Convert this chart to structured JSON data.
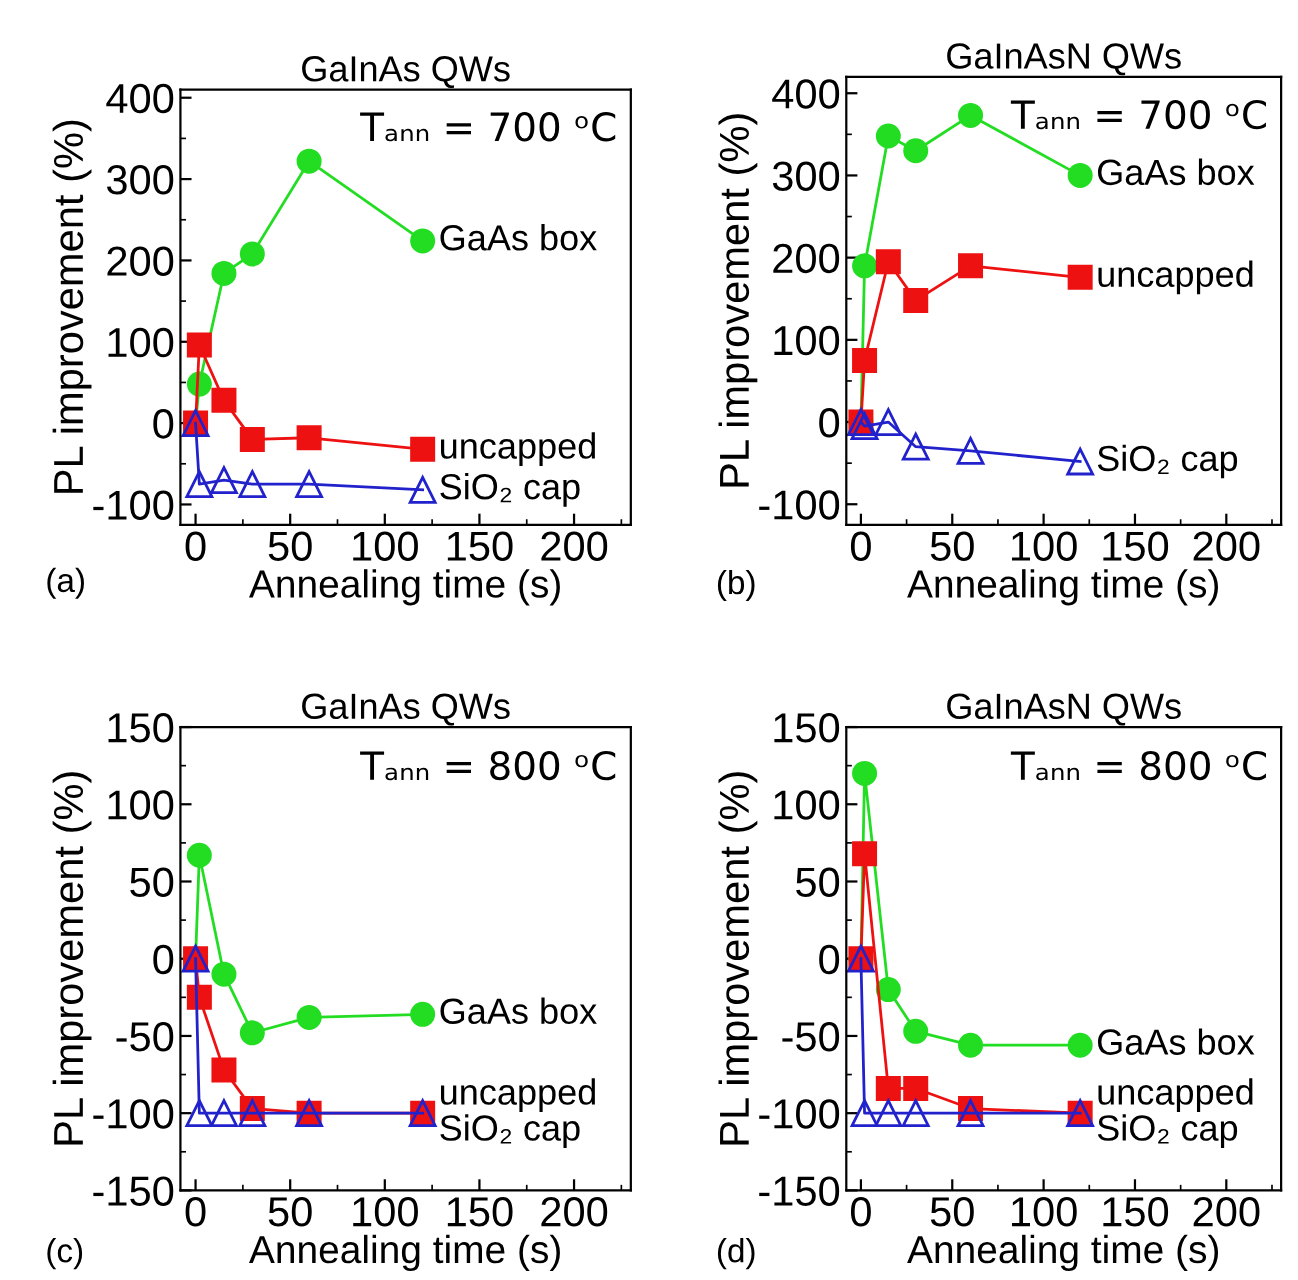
{
  "chart_data": [
    {
      "type": "line",
      "title": "GaInAs QWs",
      "xlabel": "Annealing time (s)",
      "ylabel": "PL improvement (%)",
      "x": [
        0,
        2,
        15,
        30,
        60,
        120
      ],
      "xlim": [
        -8,
        230
      ],
      "xticks": [
        0,
        50,
        100,
        150,
        200
      ],
      "ylim": [
        -125,
        410
      ],
      "yticks": [
        -100,
        0,
        100,
        200,
        300,
        400
      ],
      "grid": false,
      "legend": false,
      "annotations": [
        "Tₐₙₙ = 700 ᵒC",
        "(a)"
      ],
      "series": [
        {
          "name": "GaAs box",
          "color": "#22dd22",
          "marker": "circle",
          "values": [
            0,
            48,
            184,
            208,
            322,
            224
          ]
        },
        {
          "name": "uncapped",
          "color": "#ee1111",
          "marker": "square",
          "values": [
            0,
            96,
            28,
            -20,
            -18,
            -32
          ]
        },
        {
          "name": "SiO₂ cap",
          "color": "#2222cc",
          "marker": "triangle",
          "values": [
            0,
            -75,
            -70,
            -75,
            -75,
            -82
          ]
        }
      ]
    },
    {
      "type": "line",
      "title": "GaInAsN QWs",
      "xlabel": "Annealing time (s)",
      "ylabel": "PL improvement (%)",
      "x": [
        0,
        2,
        15,
        30,
        60,
        120
      ],
      "xlim": [
        -8,
        230
      ],
      "xticks": [
        0,
        50,
        100,
        150,
        200
      ],
      "ylim": [
        -125,
        420
      ],
      "yticks": [
        -100,
        0,
        100,
        200,
        300,
        400
      ],
      "grid": false,
      "legend": false,
      "annotations": [
        "Tₐₙₙ = 700 ᵒC",
        "(b)"
      ],
      "series": [
        {
          "name": "GaAs box",
          "color": "#22dd22",
          "marker": "circle",
          "values": [
            0,
            190,
            348,
            330,
            373,
            300
          ]
        },
        {
          "name": "uncapped",
          "color": "#ee1111",
          "marker": "square",
          "values": [
            0,
            75,
            195,
            148,
            190,
            176
          ]
        },
        {
          "name": "SiO₂ cap",
          "color": "#2222cc",
          "marker": "triangle",
          "values": [
            0,
            -5,
            0,
            -30,
            -35,
            -48
          ]
        }
      ]
    },
    {
      "type": "line",
      "title": "GaInAs QWs",
      "xlabel": "Annealing time (s)",
      "ylabel": "PL improvement (%)",
      "x": [
        0,
        2,
        15,
        30,
        60,
        120
      ],
      "xlim": [
        -8,
        230
      ],
      "xticks": [
        0,
        50,
        100,
        150,
        200
      ],
      "ylim": [
        -150,
        150
      ],
      "yticks": [
        -150,
        -100,
        -50,
        0,
        50,
        100,
        150
      ],
      "grid": false,
      "legend": false,
      "annotations": [
        "Tₐₙₙ = 800 ᵒC",
        "(c)"
      ],
      "series": [
        {
          "name": "GaAs box",
          "color": "#22dd22",
          "marker": "circle",
          "values": [
            0,
            67,
            -10,
            -48,
            -38,
            -36
          ]
        },
        {
          "name": "uncapped",
          "color": "#ee1111",
          "marker": "square",
          "values": [
            0,
            -25,
            -72,
            -97,
            -100,
            -100
          ]
        },
        {
          "name": "SiO₂ cap",
          "color": "#2222cc",
          "marker": "triangle",
          "values": [
            0,
            -100,
            -100,
            -100,
            -100,
            -100
          ]
        }
      ]
    },
    {
      "type": "line",
      "title": "GaInAsN QWs",
      "xlabel": "Annealing time (s)",
      "ylabel": "PL improvement (%)",
      "x": [
        0,
        2,
        15,
        30,
        60,
        120
      ],
      "xlim": [
        -8,
        230
      ],
      "xticks": [
        0,
        50,
        100,
        150,
        200
      ],
      "ylim": [
        -150,
        150
      ],
      "yticks": [
        -150,
        -100,
        -50,
        0,
        50,
        100,
        150
      ],
      "grid": false,
      "legend": false,
      "annotations": [
        "Tₐₙₙ = 800 ᵒC",
        "(d)"
      ],
      "series": [
        {
          "name": "GaAs box",
          "color": "#22dd22",
          "marker": "circle",
          "values": [
            0,
            120,
            -20,
            -47,
            -56,
            -56
          ]
        },
        {
          "name": "uncapped",
          "color": "#ee1111",
          "marker": "square",
          "values": [
            0,
            68,
            -84,
            -84,
            -97,
            -100
          ]
        },
        {
          "name": "SiO₂ cap",
          "color": "#2222cc",
          "marker": "triangle",
          "values": [
            0,
            -100,
            -100,
            -100,
            -100,
            -100
          ]
        }
      ]
    }
  ]
}
